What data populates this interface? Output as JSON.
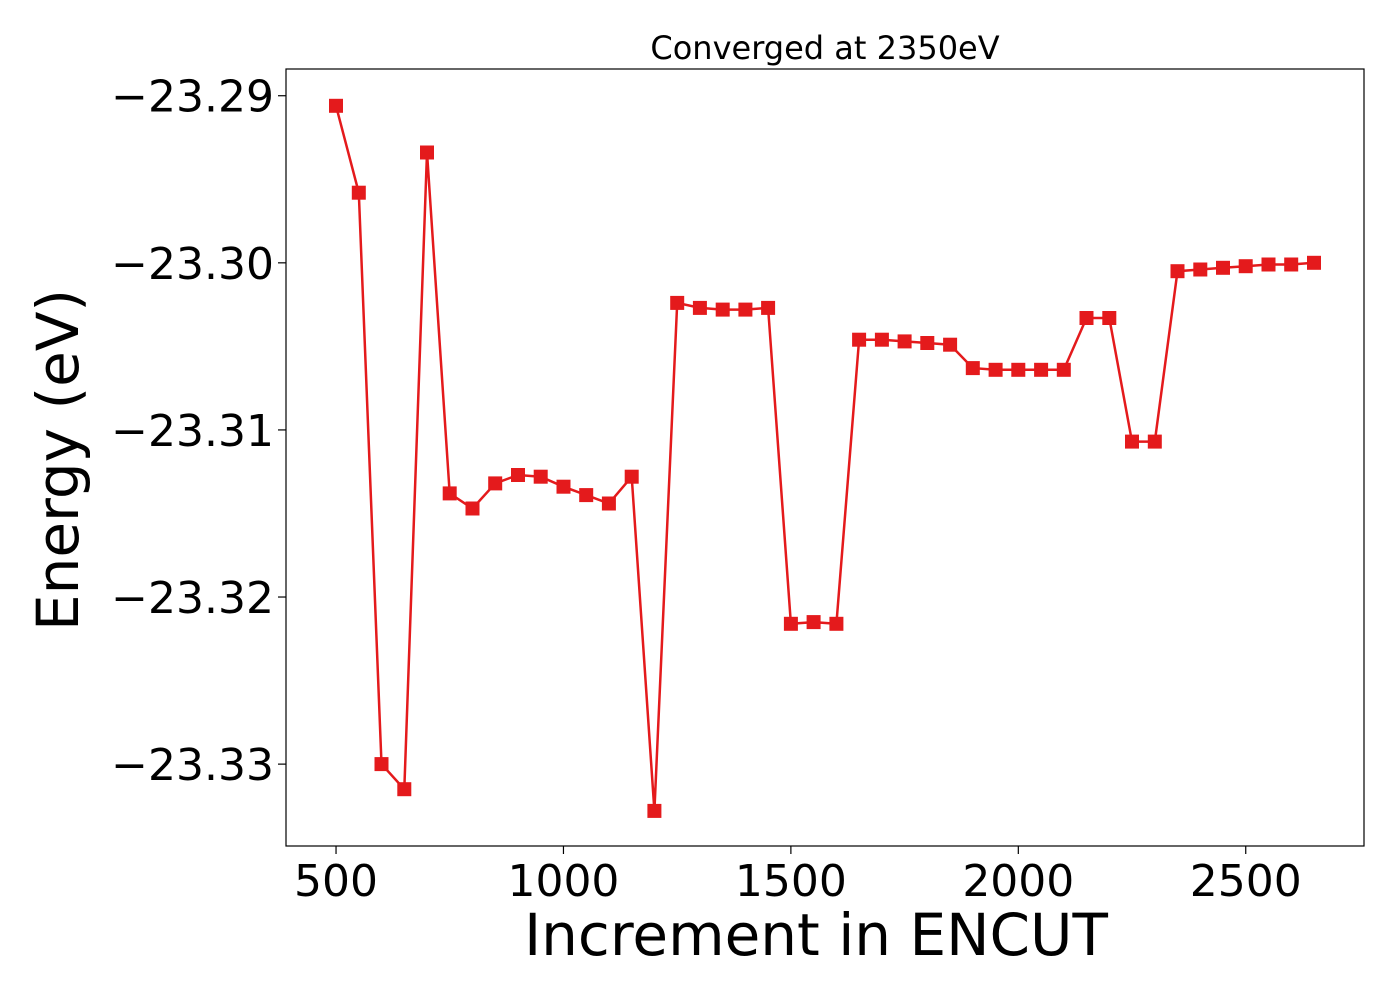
{
  "chart_data": {
    "type": "line",
    "title": "Converged at 2350eV",
    "xlabel": "Increment in ENCUT",
    "ylabel": "Energy (eV)",
    "xlim": [
      390,
      2760
    ],
    "ylim": [
      -23.3349,
      -23.2884
    ],
    "xticks": [
      500,
      1000,
      1500,
      2000,
      2500
    ],
    "yticks": [
      -23.29,
      -23.3,
      -23.31,
      -23.32,
      -23.33
    ],
    "ytick_labels": [
      "−23.29",
      "−23.30",
      "−23.31",
      "−23.32",
      "−23.33"
    ],
    "grid": false,
    "color": "#e41a1c",
    "marker": "square",
    "series": [
      {
        "x": [
          500,
          550,
          600,
          650,
          700,
          750,
          800,
          850,
          900,
          950,
          1000,
          1050,
          1100,
          1150,
          1200,
          1250,
          1300,
          1350,
          1400,
          1450,
          1500,
          1550,
          1600,
          1650,
          1700,
          1750,
          1800,
          1850,
          1900,
          1950,
          2000,
          2050,
          2100,
          2150,
          2200,
          2250,
          2300,
          2350,
          2400,
          2450,
          2500,
          2550,
          2600,
          2650
        ],
        "values": [
          -23.2906,
          -23.2958,
          -23.33,
          -23.3315,
          -23.2934,
          -23.3138,
          -23.3147,
          -23.3132,
          -23.3127,
          -23.3128,
          -23.3134,
          -23.3139,
          -23.3144,
          -23.3128,
          -23.3328,
          -23.3024,
          -23.3027,
          -23.3028,
          -23.3028,
          -23.3027,
          -23.3216,
          -23.3215,
          -23.3216,
          -23.3046,
          -23.3046,
          -23.3047,
          -23.3048,
          -23.3049,
          -23.3063,
          -23.3064,
          -23.3064,
          -23.3064,
          -23.3064,
          -23.3033,
          -23.3033,
          -23.3107,
          -23.3107,
          -23.3005,
          -23.3004,
          -23.3003,
          -23.3002,
          -23.3001,
          -23.3001,
          -23.3
        ]
      }
    ]
  }
}
